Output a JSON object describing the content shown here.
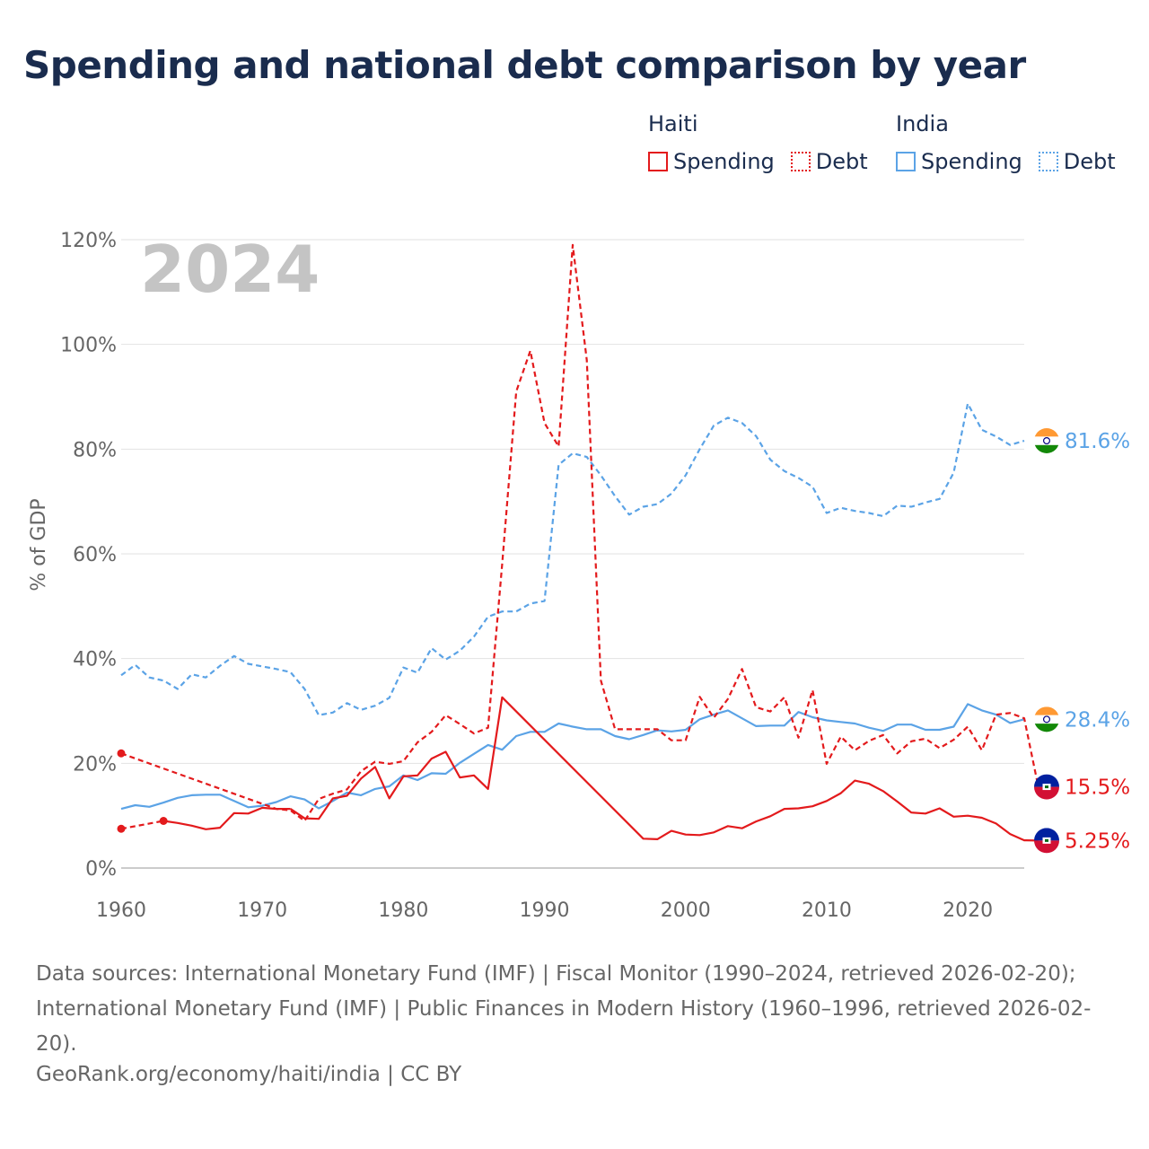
{
  "title": "Spending and national debt comparison by year",
  "legend": {
    "groups": [
      {
        "name": "Haiti",
        "items": [
          {
            "label": "Spending",
            "style": "solid",
            "color": "#e31a1c"
          },
          {
            "label": "Debt",
            "style": "dotted",
            "color": "#e31a1c"
          }
        ]
      },
      {
        "name": "India",
        "items": [
          {
            "label": "Spending",
            "style": "solid",
            "color": "#5ba3e6"
          },
          {
            "label": "Debt",
            "style": "dotted",
            "color": "#5ba3e6"
          }
        ]
      }
    ]
  },
  "year_watermark": "2024",
  "source_text": "Data sources: International Monetary Fund (IMF) | Fiscal Monitor (1990–2024, retrieved 2026-02-20); International Monetary Fund (IMF) | Public Finances in Modern History (1960–1996, retrieved 2026-02-20).",
  "credit_text": "GeoRank.org/economy/haiti/india | CC BY",
  "chart_data": {
    "type": "line",
    "title": "Spending and national debt comparison by year",
    "ylabel": "% of GDP",
    "xlabel": "",
    "xlim": [
      1960,
      2024
    ],
    "ylim": [
      0,
      120
    ],
    "x_ticks": [
      1960,
      1970,
      1980,
      1990,
      2000,
      2010,
      2020
    ],
    "y_ticks": [
      0,
      20,
      40,
      60,
      80,
      100,
      120
    ],
    "y_tick_labels": [
      "0%",
      "20%",
      "40%",
      "60%",
      "80%",
      "100%",
      "120%"
    ],
    "x_tick_labels": [
      "1960",
      "1970",
      "1980",
      "1990",
      "2000",
      "2010",
      "2020"
    ],
    "series": [
      {
        "name": "India Debt",
        "country": "India",
        "metric": "Debt",
        "color": "#5ba3e6",
        "dashed": true,
        "end_label": "81.6%",
        "points": [
          [
            1960,
            36.8
          ],
          [
            1961,
            38.8
          ],
          [
            1962,
            36.4
          ],
          [
            1963,
            35.8
          ],
          [
            1964,
            34.2
          ],
          [
            1965,
            37.0
          ],
          [
            1966,
            36.4
          ],
          [
            1967,
            38.6
          ],
          [
            1968,
            40.5
          ],
          [
            1969,
            39.0
          ],
          [
            1970,
            38.5
          ],
          [
            1971,
            38.0
          ],
          [
            1972,
            37.4
          ],
          [
            1973,
            34.2
          ],
          [
            1974,
            29.2
          ],
          [
            1975,
            29.7
          ],
          [
            1976,
            31.5
          ],
          [
            1977,
            30.2
          ],
          [
            1978,
            31.0
          ],
          [
            1979,
            32.5
          ],
          [
            1980,
            38.3
          ],
          [
            1981,
            37.3
          ],
          [
            1982,
            42.0
          ],
          [
            1983,
            39.8
          ],
          [
            1984,
            41.5
          ],
          [
            1985,
            44.2
          ],
          [
            1986,
            48.0
          ],
          [
            1987,
            49.0
          ],
          [
            1988,
            49.0
          ],
          [
            1989,
            50.5
          ],
          [
            1990,
            51.0
          ],
          [
            1991,
            77.0
          ],
          [
            1992,
            79.2
          ],
          [
            1993,
            78.5
          ],
          [
            1994,
            75.0
          ],
          [
            1995,
            71.0
          ],
          [
            1996,
            67.5
          ],
          [
            1997,
            69.0
          ],
          [
            1998,
            69.5
          ],
          [
            1999,
            71.5
          ],
          [
            2000,
            75.0
          ],
          [
            2001,
            80.0
          ],
          [
            2002,
            84.5
          ],
          [
            2003,
            86.0
          ],
          [
            2004,
            85.0
          ],
          [
            2005,
            82.5
          ],
          [
            2006,
            78.0
          ],
          [
            2007,
            75.8
          ],
          [
            2008,
            74.5
          ],
          [
            2009,
            72.8
          ],
          [
            2010,
            67.8
          ],
          [
            2011,
            68.8
          ],
          [
            2012,
            68.2
          ],
          [
            2013,
            67.8
          ],
          [
            2014,
            67.2
          ],
          [
            2015,
            69.2
          ],
          [
            2016,
            69.0
          ],
          [
            2017,
            69.8
          ],
          [
            2018,
            70.5
          ],
          [
            2019,
            75.5
          ],
          [
            2020,
            88.7
          ],
          [
            2021,
            83.7
          ],
          [
            2022,
            82.4
          ],
          [
            2023,
            80.8
          ],
          [
            2024,
            81.6
          ]
        ]
      },
      {
        "name": "India Spending",
        "country": "India",
        "metric": "Spending",
        "color": "#5ba3e6",
        "dashed": false,
        "end_label": "28.4%",
        "points": [
          [
            1960,
            11.3
          ],
          [
            1961,
            12.0
          ],
          [
            1962,
            11.7
          ],
          [
            1963,
            12.5
          ],
          [
            1964,
            13.4
          ],
          [
            1965,
            13.9
          ],
          [
            1966,
            14.0
          ],
          [
            1967,
            14.0
          ],
          [
            1968,
            12.8
          ],
          [
            1969,
            11.6
          ],
          [
            1970,
            11.9
          ],
          [
            1971,
            12.6
          ],
          [
            1972,
            13.7
          ],
          [
            1973,
            13.1
          ],
          [
            1974,
            11.4
          ],
          [
            1975,
            12.8
          ],
          [
            1976,
            14.4
          ],
          [
            1977,
            13.9
          ],
          [
            1978,
            15.1
          ],
          [
            1979,
            15.6
          ],
          [
            1980,
            17.7
          ],
          [
            1981,
            16.8
          ],
          [
            1982,
            18.1
          ],
          [
            1983,
            18.0
          ],
          [
            1984,
            20.1
          ],
          [
            1985,
            21.8
          ],
          [
            1986,
            23.5
          ],
          [
            1987,
            22.6
          ],
          [
            1988,
            25.2
          ],
          [
            1989,
            26.0
          ],
          [
            1990,
            26.0
          ],
          [
            1991,
            27.6
          ],
          [
            1992,
            27.0
          ],
          [
            1993,
            26.5
          ],
          [
            1994,
            26.5
          ],
          [
            1995,
            25.2
          ],
          [
            1996,
            24.6
          ],
          [
            1997,
            25.4
          ],
          [
            1998,
            26.3
          ],
          [
            1999,
            26.1
          ],
          [
            2000,
            26.4
          ],
          [
            2001,
            28.4
          ],
          [
            2002,
            29.3
          ],
          [
            2003,
            30.1
          ],
          [
            2004,
            28.6
          ],
          [
            2005,
            27.1
          ],
          [
            2006,
            27.2
          ],
          [
            2007,
            27.2
          ],
          [
            2008,
            29.8
          ],
          [
            2009,
            28.8
          ],
          [
            2010,
            28.2
          ],
          [
            2011,
            27.9
          ],
          [
            2012,
            27.6
          ],
          [
            2013,
            26.8
          ],
          [
            2014,
            26.2
          ],
          [
            2015,
            27.4
          ],
          [
            2016,
            27.4
          ],
          [
            2017,
            26.4
          ],
          [
            2018,
            26.4
          ],
          [
            2019,
            27.0
          ],
          [
            2020,
            31.3
          ],
          [
            2021,
            30.1
          ],
          [
            2022,
            29.3
          ],
          [
            2023,
            27.7
          ],
          [
            2024,
            28.4
          ]
        ]
      },
      {
        "name": "Haiti Debt",
        "country": "Haiti",
        "metric": "Debt",
        "color": "#e31a1c",
        "dashed": true,
        "end_label": "15.5%",
        "points": [
          [
            1960,
            21.9
          ],
          [
            1971,
            11.3
          ],
          [
            1972,
            11.0
          ],
          [
            1973,
            9.0
          ],
          [
            1974,
            13.2
          ],
          [
            1975,
            14.2
          ],
          [
            1976,
            15.0
          ],
          [
            1977,
            18.5
          ],
          [
            1978,
            20.3
          ],
          [
            1979,
            19.9
          ],
          [
            1980,
            20.4
          ],
          [
            1981,
            24.0
          ],
          [
            1982,
            26.0
          ],
          [
            1983,
            29.2
          ],
          [
            1984,
            27.5
          ],
          [
            1985,
            25.7
          ],
          [
            1986,
            26.8
          ],
          [
            1987,
            58.0
          ],
          [
            1988,
            91.0
          ],
          [
            1989,
            98.8
          ],
          [
            1990,
            85.0
          ],
          [
            1991,
            80.5
          ],
          [
            1992,
            119.0
          ],
          [
            1993,
            97.0
          ],
          [
            1994,
            35.8
          ],
          [
            1995,
            26.5
          ],
          [
            1996,
            26.5
          ],
          [
            1997,
            26.5
          ],
          [
            1998,
            26.5
          ],
          [
            1999,
            24.4
          ],
          [
            2000,
            24.4
          ],
          [
            2001,
            32.7
          ],
          [
            2002,
            28.7
          ],
          [
            2003,
            32.3
          ],
          [
            2004,
            38.0
          ],
          [
            2005,
            30.7
          ],
          [
            2006,
            29.9
          ],
          [
            2007,
            32.6
          ],
          [
            2008,
            24.9
          ],
          [
            2009,
            34.0
          ],
          [
            2010,
            19.9
          ],
          [
            2011,
            25.1
          ],
          [
            2012,
            22.5
          ],
          [
            2013,
            24.3
          ],
          [
            2014,
            25.4
          ],
          [
            2015,
            21.9
          ],
          [
            2016,
            24.2
          ],
          [
            2017,
            24.7
          ],
          [
            2018,
            22.9
          ],
          [
            2019,
            24.5
          ],
          [
            2020,
            27.0
          ],
          [
            2021,
            22.5
          ],
          [
            2022,
            29.3
          ],
          [
            2023,
            29.6
          ],
          [
            2024,
            28.6
          ],
          [
            2025,
            15.5
          ]
        ]
      },
      {
        "name": "Haiti Spending",
        "country": "Haiti",
        "metric": "Spending",
        "color": "#e31a1c",
        "dashed": false,
        "end_label": "5.25%",
        "points": [
          [
            1972,
            11.3
          ],
          [
            1973,
            9.5
          ],
          [
            1974,
            9.4
          ],
          [
            1975,
            13.3
          ],
          [
            1976,
            13.8
          ],
          [
            1977,
            17.1
          ],
          [
            1978,
            19.3
          ],
          [
            1979,
            13.3
          ],
          [
            1980,
            17.5
          ],
          [
            1981,
            17.7
          ],
          [
            1982,
            20.9
          ],
          [
            1983,
            22.2
          ],
          [
            1984,
            17.3
          ],
          [
            1985,
            17.7
          ],
          [
            1986,
            15.1
          ],
          [
            1987,
            32.6
          ],
          [
            1997,
            5.6
          ],
          [
            1998,
            5.5
          ],
          [
            1999,
            7.1
          ],
          [
            2000,
            6.4
          ],
          [
            2001,
            6.3
          ],
          [
            2002,
            6.8
          ],
          [
            2003,
            8.0
          ],
          [
            2004,
            7.6
          ],
          [
            2005,
            8.9
          ],
          [
            2006,
            9.9
          ],
          [
            2007,
            11.3
          ],
          [
            2008,
            11.4
          ],
          [
            2009,
            11.8
          ],
          [
            2010,
            12.8
          ],
          [
            2011,
            14.3
          ],
          [
            2012,
            16.7
          ],
          [
            2013,
            16.1
          ],
          [
            2014,
            14.7
          ],
          [
            2015,
            12.7
          ],
          [
            2016,
            10.6
          ],
          [
            2017,
            10.4
          ],
          [
            2018,
            11.4
          ],
          [
            2019,
            9.8
          ],
          [
            2020,
            10.0
          ],
          [
            2021,
            9.6
          ],
          [
            2022,
            8.5
          ],
          [
            2023,
            6.5
          ],
          [
            2024,
            5.3
          ],
          [
            2025,
            5.25
          ]
        ]
      },
      {
        "name": "Haiti Spending early",
        "country": "Haiti",
        "metric": "Spending",
        "color": "#e31a1c",
        "dashed": false,
        "points": [
          [
            1963,
            9.0
          ],
          [
            1964,
            8.6
          ],
          [
            1965,
            8.1
          ],
          [
            1966,
            7.4
          ],
          [
            1967,
            7.7
          ],
          [
            1968,
            10.5
          ],
          [
            1969,
            10.4
          ],
          [
            1970,
            11.5
          ],
          [
            1971,
            11.3
          ],
          [
            1972,
            11.3
          ]
        ]
      },
      {
        "name": "Haiti Spending earliest",
        "country": "Haiti",
        "metric": "Spending",
        "color": "#e31a1c",
        "dashed": true,
        "points": [
          [
            1960,
            7.5
          ],
          [
            1963,
            9.0
          ]
        ]
      }
    ],
    "markers": [
      {
        "country": "Haiti",
        "x": 1960,
        "y": 21.9
      },
      {
        "country": "Haiti",
        "x": 1960,
        "y": 7.5
      },
      {
        "country": "Haiti",
        "x": 1963,
        "y": 9.0
      }
    ],
    "end_labels": [
      {
        "country": "India",
        "text": "81.6%",
        "y": 81.6,
        "color": "#5ba3e6"
      },
      {
        "country": "India",
        "text": "28.4%",
        "y": 28.4,
        "color": "#5ba3e6"
      },
      {
        "country": "Haiti",
        "text": "15.5%",
        "y": 15.5,
        "color": "#e31a1c"
      },
      {
        "country": "Haiti",
        "text": "5.25%",
        "y": 5.25,
        "color": "#e31a1c"
      }
    ]
  }
}
